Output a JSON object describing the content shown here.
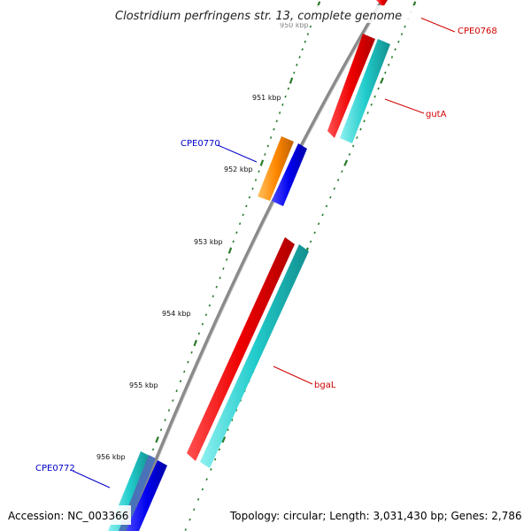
{
  "map": {
    "title": "Clostridium perfringens str. 13, complete genome",
    "accession": "Accession: NC_003366",
    "summary": "Topology: circular; Length: 3,031,430 bp; Genes: 2,786"
  },
  "ticks": {
    "first_label_partial": "950 kbp",
    "labels": [
      "951 kbp",
      "952 kbp",
      "953 kbp",
      "954 kbp",
      "955 kbp",
      "956 kbp"
    ]
  },
  "genes": [
    {
      "name": "CPE0768",
      "color": "#d00000"
    },
    {
      "name": "gutA",
      "color": "#d00000"
    },
    {
      "name": "CPE0770",
      "color": "#0000c8"
    },
    {
      "name": "bgaL",
      "color": "#d00000"
    },
    {
      "name": "CPE0772",
      "color": "#0000c8"
    }
  ],
  "colors": {
    "backbone": "#888888",
    "feature_red": "#ee0000",
    "feature_cyan": "#22cccc",
    "feature_blue": "#0000ee",
    "feature_orange": "#ff8800",
    "tick_green": "#2a7a2a"
  }
}
